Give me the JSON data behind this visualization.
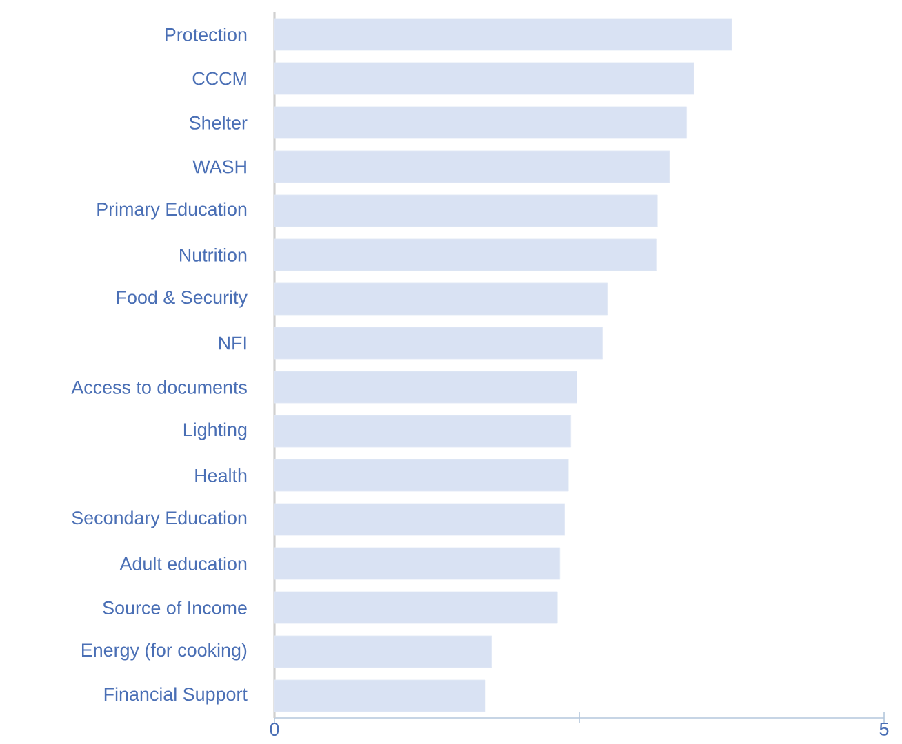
{
  "chart_data": {
    "type": "bar",
    "orientation": "horizontal",
    "categories": [
      "Protection",
      "CCCM",
      "Shelter",
      "WASH",
      "Primary Education",
      "Nutrition",
      "Food & Security",
      "NFI",
      "Access to documents",
      "Lighting",
      "Health",
      "Secondary Education",
      "Adult education",
      "Source of Income",
      "Energy (for cooking)",
      "Financial Support"
    ],
    "values": [
      3.75,
      3.44,
      3.38,
      3.24,
      3.14,
      3.13,
      2.73,
      2.69,
      2.48,
      2.43,
      2.41,
      2.38,
      2.34,
      2.32,
      1.78,
      1.73
    ],
    "color": "#d9e2f3",
    "xlim": [
      0,
      5
    ],
    "xticks": [
      0,
      {
        "value": 2.5,
        "label": null
      },
      5
    ]
  }
}
